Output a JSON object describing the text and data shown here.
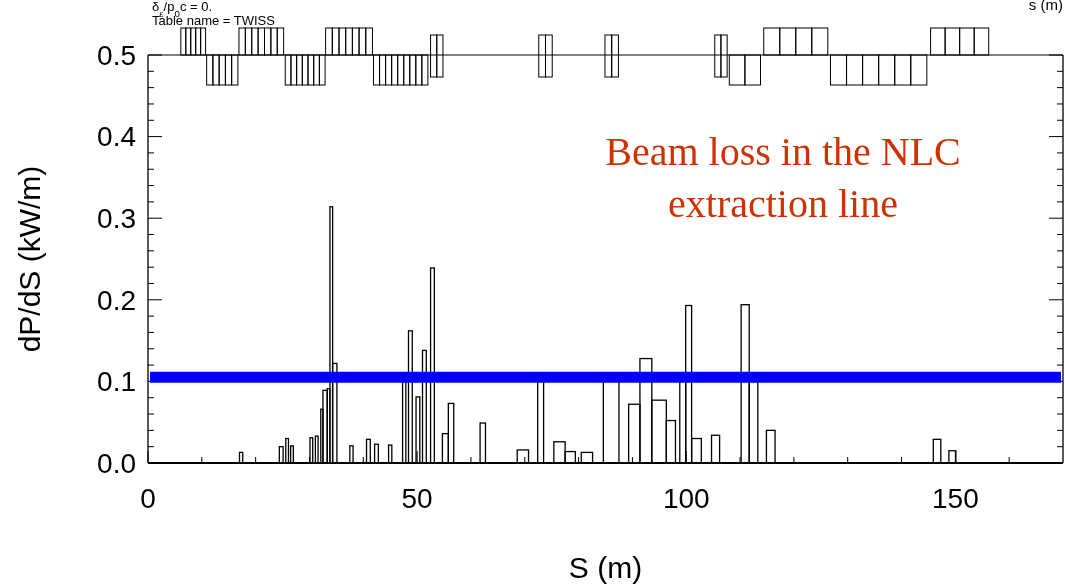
{
  "chart_data": {
    "type": "histogram",
    "xlabel": "S (m)",
    "ylabel": "dP/dS (kW/m)",
    "bins": [
      17.0,
      17.6,
      24.4,
      25.1,
      25.6,
      26.1,
      26.5,
      27.0,
      30.1,
      30.6,
      31.1,
      31.6,
      32.1,
      32.5,
      33.3,
      33.8,
      34.3,
      35.1,
      37.5,
      38.1,
      40.6,
      41.3,
      42.1,
      42.8,
      44.7,
      45.3,
      47.3,
      47.9,
      48.4,
      49.1,
      49.8,
      50.5,
      51.0,
      51.7,
      52.5,
      53.2,
      54.7,
      55.8,
      56.8,
      61.7,
      62.7,
      68.6,
      70.7,
      72.4,
      73.5,
      75.4,
      77.5,
      79.4,
      80.5,
      82.6,
      84.6,
      87.5,
      89.3,
      91.4,
      93.6,
      96.3,
      98.0,
      98.8,
      99.9,
      101.0,
      102.8,
      104.7,
      106.2,
      110.2,
      111.7,
      113.3,
      114.9,
      116.5,
      145.9,
      147.3,
      148.8,
      150.1
    ],
    "values": [
      0.013,
      0,
      0.02,
      0,
      0.03,
      0,
      0.021,
      0,
      0.031,
      0,
      0.033,
      0,
      0.066,
      0.089,
      0.091,
      0.314,
      0.122,
      0,
      0.021,
      0,
      0.029,
      0,
      0.023,
      0,
      0.022,
      0,
      0.1,
      0,
      0.162,
      0,
      0.081,
      0,
      0.138,
      0,
      0.239,
      0,
      0.036,
      0.073,
      0,
      0.049,
      0,
      0.016,
      0,
      0.1,
      0,
      0.026,
      0.014,
      0,
      0.013,
      0,
      0.1,
      0,
      0.072,
      0.128,
      0.077,
      0.052,
      0,
      0.1,
      0.193,
      0.03,
      0,
      0.034,
      0,
      0.194,
      0.1,
      0,
      0.04,
      0,
      0.029,
      0,
      0.015
    ],
    "color": "#000000",
    "xlim": [
      0,
      170
    ],
    "xticks": [
      0,
      {
        "value": 10,
        "label": null
      },
      {
        "value": 20,
        "label": null
      },
      {
        "value": 30,
        "label": null
      },
      {
        "value": 40,
        "label": null
      },
      50,
      {
        "value": 60,
        "label": null
      },
      {
        "value": 70,
        "label": null
      },
      {
        "value": 80,
        "label": null
      },
      {
        "value": 90,
        "label": null
      },
      100,
      {
        "value": 110,
        "label": null
      },
      {
        "value": 120,
        "label": null
      },
      {
        "value": 130,
        "label": null
      },
      {
        "value": 140,
        "label": null
      },
      150,
      {
        "value": 160,
        "label": null
      }
    ],
    "ylim": [
      0,
      0.5
    ],
    "yticks": [
      {
        "value": 0,
        "label": "0.0"
      },
      {
        "value": 0.02,
        "label": null
      },
      {
        "value": 0.04,
        "label": null
      },
      {
        "value": 0.06,
        "label": null
      },
      {
        "value": 0.08,
        "label": null
      },
      0.1,
      {
        "value": 0.12,
        "label": null
      },
      {
        "value": 0.14,
        "label": null
      },
      {
        "value": 0.16,
        "label": null
      },
      {
        "value": 0.18,
        "label": null
      },
      0.2,
      {
        "value": 0.22,
        "label": null
      },
      {
        "value": 0.24,
        "label": null
      },
      {
        "value": 0.26,
        "label": null
      },
      {
        "value": 0.28,
        "label": null
      },
      0.3,
      {
        "value": 0.32,
        "label": null
      },
      {
        "value": 0.34,
        "label": null
      },
      {
        "value": 0.36,
        "label": null
      },
      {
        "value": 0.38,
        "label": null
      },
      0.4,
      {
        "value": 0.42,
        "label": null
      },
      {
        "value": 0.44,
        "label": null
      },
      {
        "value": 0.46,
        "label": null
      },
      {
        "value": 0.48,
        "label": null
      },
      0.5
    ],
    "ref_lines": [
      {
        "axis": "y",
        "value": 0.105,
        "color": "#0000ff"
      }
    ],
    "annotations": [
      "δ$_{ε}$/p$_{0}$c = 0.",
      "Table name = TWISS",
      "s (m)",
      "Beam loss in the NLC\nextraction line"
    ]
  }
}
